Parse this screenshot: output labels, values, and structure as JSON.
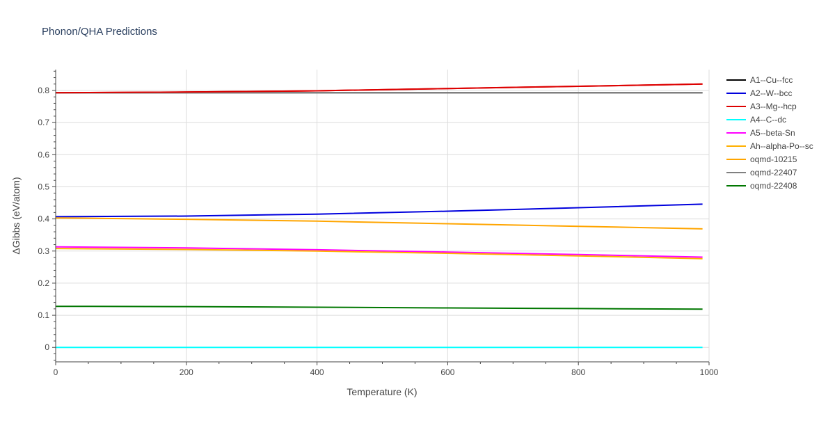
{
  "chart_data": {
    "type": "line",
    "title": "Phonon/QHA Predictions",
    "xlabel": "Temperature (K)",
    "ylabel": "ΔGibbs (eV/atom)",
    "xlim": [
      0,
      1000
    ],
    "ylim": [
      -0.045,
      0.865
    ],
    "xticks": [
      0,
      200,
      400,
      600,
      800,
      1000
    ],
    "yticks": [
      0,
      0.1,
      0.2,
      0.3,
      0.4,
      0.5,
      0.6,
      0.7,
      0.8
    ],
    "grid": true,
    "legend_position": "right",
    "series": [
      {
        "name": "A1--Cu--fcc",
        "color": "#000000",
        "x": [
          0,
          990
        ],
        "y": [
          0.793,
          0.793
        ]
      },
      {
        "name": "A2--W--bcc",
        "color": "#0000dd",
        "x": [
          0,
          200,
          400,
          600,
          800,
          990
        ],
        "y": [
          0.407,
          0.409,
          0.415,
          0.424,
          0.435,
          0.446
        ]
      },
      {
        "name": "A3--Mg--hcp",
        "color": "#dd0000",
        "x": [
          0,
          200,
          400,
          600,
          800,
          990
        ],
        "y": [
          0.793,
          0.795,
          0.799,
          0.806,
          0.813,
          0.82
        ]
      },
      {
        "name": "A4--C--dc",
        "color": "#00ffff",
        "x": [
          0,
          990
        ],
        "y": [
          0.0,
          0.0
        ]
      },
      {
        "name": "A5--beta-Sn",
        "color": "#ff00ff",
        "x": [
          0,
          200,
          400,
          600,
          800,
          990
        ],
        "y": [
          0.313,
          0.31,
          0.304,
          0.297,
          0.289,
          0.281
        ]
      },
      {
        "name": "Ah--alpha-Po--sc",
        "color": "#ffb000",
        "x": [
          0,
          200,
          400,
          600,
          800,
          990
        ],
        "y": [
          0.308,
          0.305,
          0.3,
          0.293,
          0.285,
          0.276
        ]
      },
      {
        "name": "oqmd-10215",
        "color": "#ffa500",
        "x": [
          0,
          200,
          400,
          600,
          800,
          990
        ],
        "y": [
          0.403,
          0.399,
          0.393,
          0.385,
          0.377,
          0.369
        ]
      },
      {
        "name": "oqmd-22407",
        "color": "#808080",
        "x": [
          0,
          990
        ],
        "y": [
          0.793,
          0.793
        ]
      },
      {
        "name": "oqmd-22408",
        "color": "#007700",
        "x": [
          0,
          200,
          400,
          600,
          800,
          990
        ],
        "y": [
          0.128,
          0.127,
          0.125,
          0.123,
          0.121,
          0.119
        ]
      }
    ]
  }
}
